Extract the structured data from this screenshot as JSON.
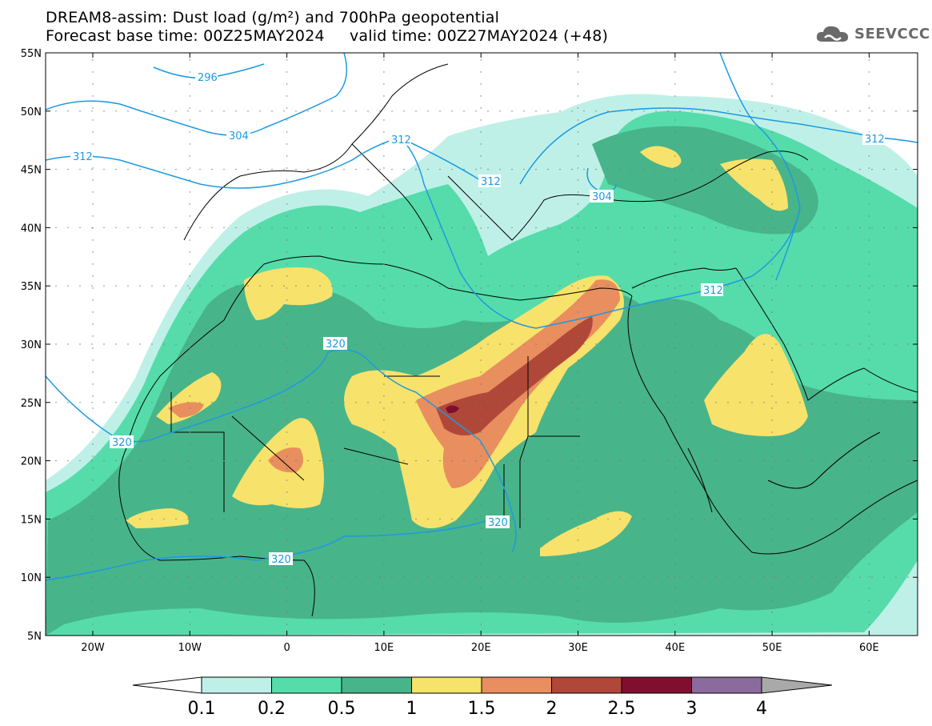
{
  "header": {
    "line1": "DREAM8-assim: Dust load (g/m²) and 700hPa geopotential",
    "line2": "Forecast base time: 00Z25MAY2024     valid time: 00Z27MAY2024 (+48)"
  },
  "logo": {
    "text": "SEEVCCC",
    "icon": "cloud-icon"
  },
  "axes": {
    "lat_labels": [
      "55N",
      "50N",
      "45N",
      "40N",
      "35N",
      "30N",
      "25N",
      "20N",
      "15N",
      "10N",
      "5N"
    ],
    "lon_labels": [
      "20W",
      "10W",
      "0",
      "10E",
      "20E",
      "30E",
      "40E",
      "50E",
      "60E"
    ]
  },
  "contours": {
    "labels": [
      "296",
      "304",
      "312",
      "312",
      "312",
      "304",
      "312",
      "312",
      "320",
      "320",
      "320",
      "320"
    ]
  },
  "colorbar": {
    "labels": [
      "0.1",
      "0.2",
      "0.5",
      "1",
      "1.5",
      "2",
      "2.5",
      "3",
      "4"
    ],
    "colors": [
      "#ffffff",
      "#bff0e8",
      "#55dcaa",
      "#48b48a",
      "#f7e26b",
      "#e98e5e",
      "#b0483a",
      "#800f2f",
      "#8b6b9e",
      "#a9a9a9"
    ]
  }
}
